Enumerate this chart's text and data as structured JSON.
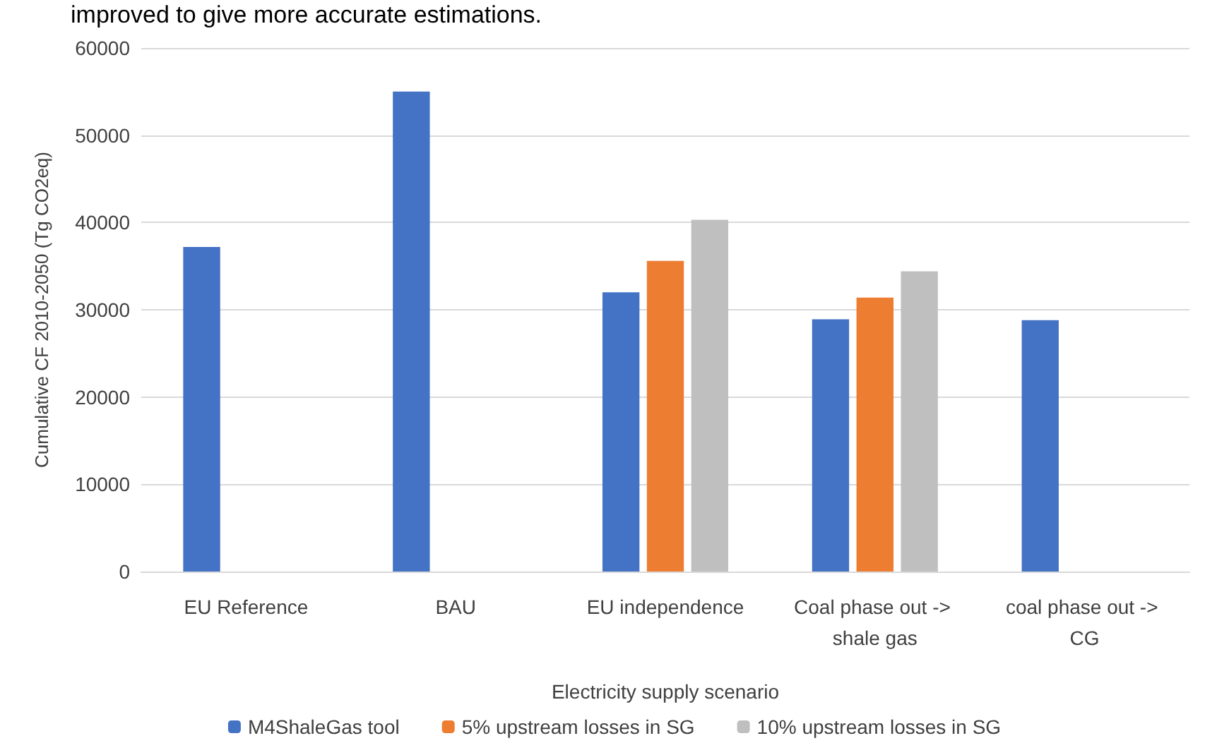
{
  "chart_data": {
    "type": "bar",
    "xlabel": "Electricity supply scenario",
    "ylabel": "Cumulative CF 2010-2050 (Tg CO2eq)",
    "annotations": [
      "improved to give more accurate estimations."
    ],
    "categories": [
      "EU Reference",
      "BAU",
      "EU independence",
      "Coal phase out -> shale gas",
      "coal phase out -> CG"
    ],
    "series": [
      {
        "name": "M4ShaleGas tool",
        "color": "#4472c4",
        "values": [
          37200,
          55000,
          32000,
          28900,
          28800
        ]
      },
      {
        "name": "5% upstream losses in SG",
        "color": "#ed7d31",
        "values": [
          null,
          null,
          35600,
          31400,
          null
        ]
      },
      {
        "name": "10% upstream losses in SG",
        "color": "#bfbfbf",
        "values": [
          null,
          null,
          40300,
          34400,
          null
        ]
      }
    ],
    "ylim": [
      0,
      60000
    ],
    "yticks": [
      0,
      10000,
      20000,
      30000,
      40000,
      50000,
      60000
    ],
    "grid": "y",
    "legend": "bottom"
  }
}
